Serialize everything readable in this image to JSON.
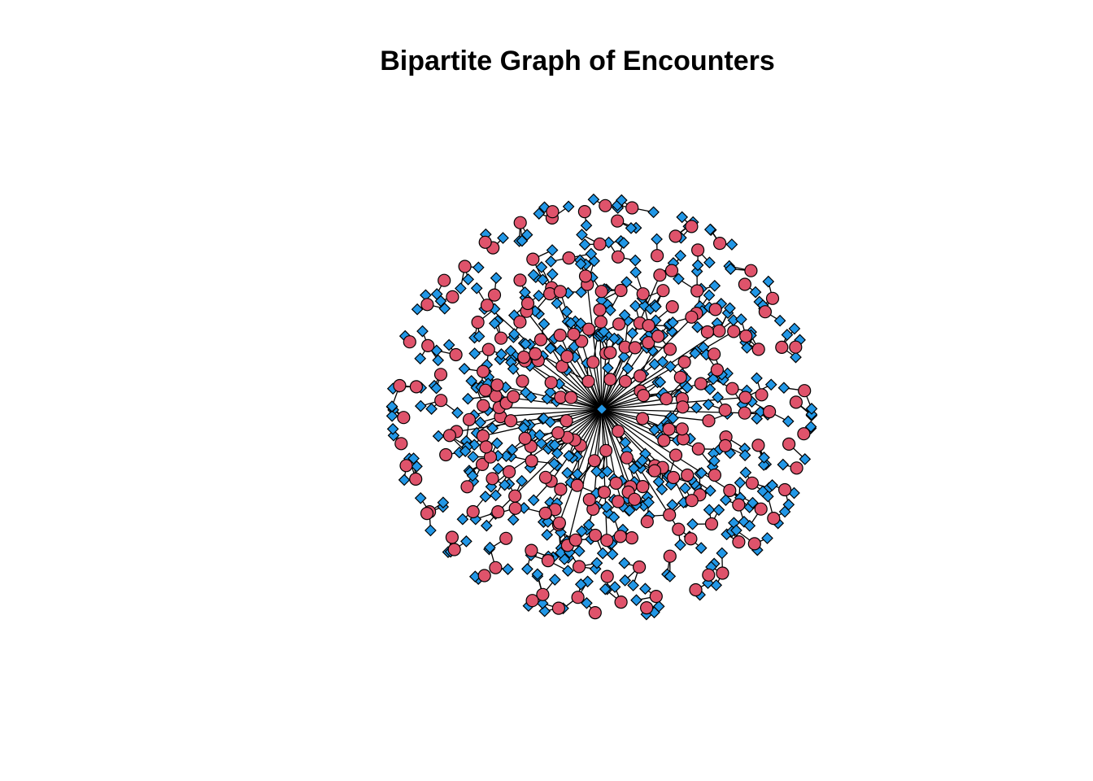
{
  "title": "Bipartite Graph of Encounters",
  "graph": {
    "layout": "radial",
    "node_types": [
      {
        "type": "circle",
        "fill": "#DF536B",
        "stroke": "#000000"
      },
      {
        "type": "diamond",
        "fill": "#2297E6",
        "stroke": "#000000"
      }
    ],
    "edge_color": "#000000",
    "hub": {
      "type": "diamond"
    },
    "spokes": 70,
    "rings": [
      {
        "ring": 1,
        "count": 36
      },
      {
        "ring": 2,
        "count": 40
      },
      {
        "ring": 3,
        "count": 34
      },
      {
        "ring": 4,
        "count": 28
      },
      {
        "ring": 5,
        "count": 30
      }
    ]
  }
}
